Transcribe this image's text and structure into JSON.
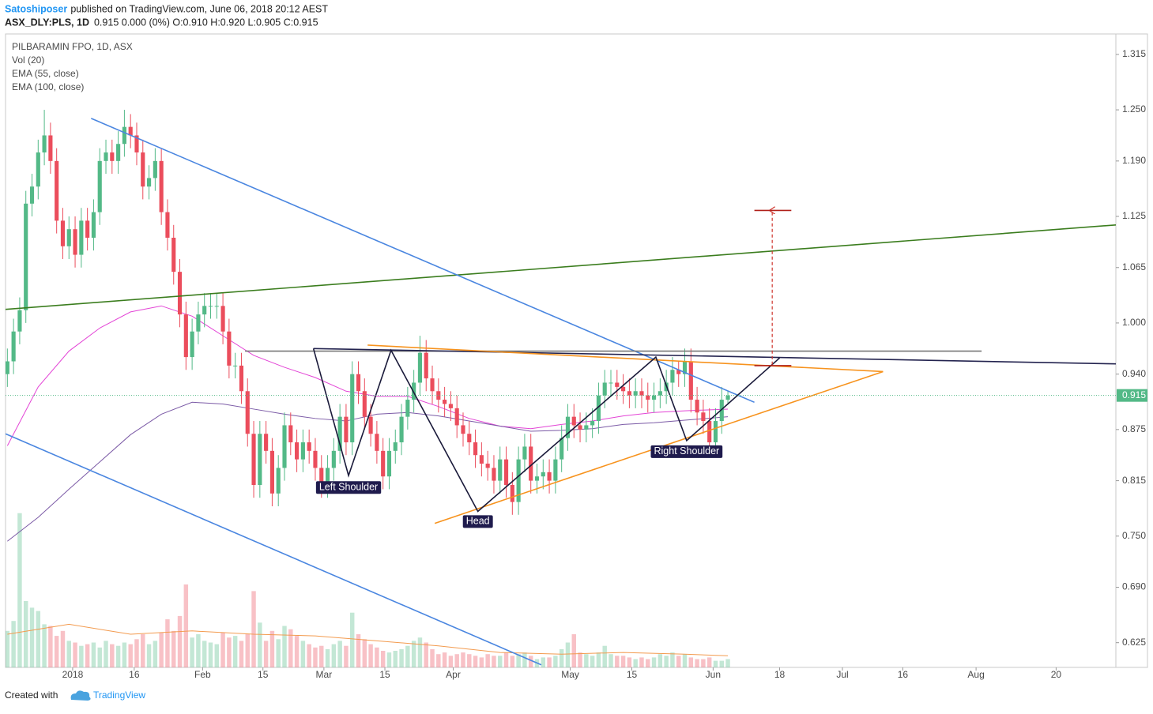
{
  "header": {
    "author": "Satoshiposer",
    "published": "published on TradingView.com, June 06, 2018 20:12 AEST",
    "symbol": "ASX_DLY:PLS, 1D",
    "quote": "0.915 0.000 (0%) O:0.910 H:0.920 L:0.905 C:0.915"
  },
  "chart_data": {
    "type": "candlestick",
    "title": "PILBARAMIN FPO, 1D, ASX",
    "up_color": "#53b987",
    "down_color": "#eb4d5c",
    "open": [
      0.94,
      0.955,
      0.99,
      1.015,
      1.14,
      1.16,
      1.2,
      1.22,
      1.19,
      1.12,
      1.09,
      1.11,
      1.08,
      1.12,
      1.1,
      1.13,
      1.19,
      1.2,
      1.19,
      1.21,
      1.23,
      1.22,
      1.2,
      1.16,
      1.17,
      1.19,
      1.13,
      1.1,
      1.06,
      1.01,
      0.96,
      0.99,
      1.01,
      1.02,
      1.02,
      1.02,
      0.99,
      0.95,
      0.95,
      0.92,
      0.87,
      0.81,
      0.87,
      0.85,
      0.8,
      0.83,
      0.88,
      0.86,
      0.84,
      0.86,
      0.85,
      0.83,
      0.81,
      0.83,
      0.85,
      0.89,
      0.86,
      0.94,
      0.92,
      0.89,
      0.87,
      0.85,
      0.82,
      0.85,
      0.86,
      0.89,
      0.91,
      0.93,
      0.965,
      0.935,
      0.92,
      0.91,
      0.905,
      0.9,
      0.88,
      0.87,
      0.86,
      0.845,
      0.835,
      0.83,
      0.815,
      0.84,
      0.81,
      0.79,
      0.84,
      0.855,
      0.815,
      0.82,
      0.825,
      0.815,
      0.84,
      0.865,
      0.89,
      0.88,
      0.875,
      0.88,
      0.885,
      0.915,
      0.93,
      0.93,
      0.925,
      0.92,
      0.915,
      0.92,
      0.915,
      0.91,
      0.915,
      0.92,
      0.93,
      0.945,
      0.94,
      0.955,
      0.91,
      0.895,
      0.885,
      0.86,
      0.885,
      0.91
    ],
    "high": [
      0.97,
      1.005,
      1.03,
      1.155,
      1.175,
      1.215,
      1.25,
      1.235,
      1.205,
      1.135,
      1.125,
      1.125,
      1.135,
      1.135,
      1.145,
      1.205,
      1.215,
      1.215,
      1.225,
      1.25,
      1.245,
      1.235,
      1.215,
      1.185,
      1.205,
      1.205,
      1.145,
      1.115,
      1.075,
      1.025,
      1.005,
      1.025,
      1.035,
      1.035,
      1.035,
      1.035,
      1.005,
      0.965,
      0.965,
      0.935,
      0.885,
      0.885,
      0.885,
      0.865,
      0.845,
      0.895,
      0.895,
      0.875,
      0.875,
      0.875,
      0.865,
      0.845,
      0.845,
      0.865,
      0.905,
      0.905,
      0.955,
      0.955,
      0.935,
      0.905,
      0.885,
      0.865,
      0.865,
      0.875,
      0.905,
      0.925,
      0.945,
      0.985,
      0.98,
      0.95,
      0.935,
      0.925,
      0.92,
      0.915,
      0.895,
      0.885,
      0.875,
      0.86,
      0.85,
      0.845,
      0.855,
      0.855,
      0.825,
      0.855,
      0.87,
      0.87,
      0.835,
      0.84,
      0.84,
      0.855,
      0.88,
      0.905,
      0.905,
      0.895,
      0.895,
      0.9,
      0.93,
      0.945,
      0.945,
      0.945,
      0.94,
      0.935,
      0.935,
      0.935,
      0.93,
      0.93,
      0.935,
      0.945,
      0.96,
      0.955,
      0.97,
      0.97,
      0.925,
      0.91,
      0.9,
      0.9,
      0.925,
      0.92
    ],
    "low": [
      0.925,
      0.94,
      0.975,
      1.0,
      1.125,
      1.145,
      1.185,
      1.175,
      1.105,
      1.075,
      1.075,
      1.065,
      1.065,
      1.085,
      1.085,
      1.115,
      1.175,
      1.175,
      1.175,
      1.195,
      1.205,
      1.185,
      1.145,
      1.145,
      1.155,
      1.115,
      1.085,
      1.045,
      0.995,
      0.945,
      0.945,
      0.975,
      0.995,
      1.005,
      1.005,
      0.975,
      0.935,
      0.935,
      0.905,
      0.855,
      0.795,
      0.795,
      0.835,
      0.785,
      0.785,
      0.815,
      0.845,
      0.825,
      0.825,
      0.835,
      0.815,
      0.795,
      0.795,
      0.815,
      0.835,
      0.845,
      0.845,
      0.905,
      0.875,
      0.855,
      0.835,
      0.805,
      0.805,
      0.835,
      0.845,
      0.875,
      0.895,
      0.915,
      0.92,
      0.905,
      0.895,
      0.89,
      0.885,
      0.865,
      0.855,
      0.845,
      0.83,
      0.82,
      0.815,
      0.8,
      0.8,
      0.795,
      0.775,
      0.775,
      0.825,
      0.8,
      0.8,
      0.805,
      0.8,
      0.8,
      0.825,
      0.85,
      0.865,
      0.86,
      0.86,
      0.865,
      0.87,
      0.9,
      0.915,
      0.91,
      0.905,
      0.9,
      0.9,
      0.9,
      0.895,
      0.895,
      0.9,
      0.905,
      0.915,
      0.925,
      0.925,
      0.895,
      0.88,
      0.87,
      0.845,
      0.845,
      0.87,
      0.905
    ],
    "close": [
      0.955,
      0.99,
      1.015,
      1.14,
      1.16,
      1.2,
      1.22,
      1.19,
      1.12,
      1.09,
      1.11,
      1.08,
      1.12,
      1.1,
      1.13,
      1.19,
      1.2,
      1.19,
      1.21,
      1.23,
      1.22,
      1.2,
      1.16,
      1.17,
      1.19,
      1.13,
      1.1,
      1.06,
      1.01,
      0.96,
      0.99,
      1.01,
      1.02,
      1.02,
      1.02,
      0.99,
      0.95,
      0.95,
      0.92,
      0.87,
      0.81,
      0.87,
      0.85,
      0.8,
      0.83,
      0.88,
      0.86,
      0.84,
      0.86,
      0.85,
      0.83,
      0.81,
      0.83,
      0.85,
      0.89,
      0.86,
      0.94,
      0.92,
      0.89,
      0.87,
      0.85,
      0.82,
      0.85,
      0.86,
      0.89,
      0.91,
      0.93,
      0.965,
      0.935,
      0.92,
      0.91,
      0.905,
      0.9,
      0.88,
      0.87,
      0.86,
      0.845,
      0.835,
      0.83,
      0.815,
      0.84,
      0.81,
      0.79,
      0.84,
      0.855,
      0.815,
      0.82,
      0.825,
      0.815,
      0.84,
      0.865,
      0.89,
      0.88,
      0.875,
      0.88,
      0.885,
      0.915,
      0.93,
      0.93,
      0.925,
      0.92,
      0.915,
      0.92,
      0.915,
      0.91,
      0.915,
      0.92,
      0.93,
      0.945,
      0.94,
      0.955,
      0.91,
      0.895,
      0.885,
      0.86,
      0.885,
      0.91,
      0.915
    ],
    "volume": {
      "name": "Vol (20)",
      "ylim": [
        0,
        10
      ],
      "values": [
        2.2,
        2.8,
        9.3,
        4.0,
        3.6,
        3.4,
        2.6,
        2.5,
        1.9,
        2.2,
        1.6,
        1.5,
        1.3,
        1.4,
        1.5,
        1.2,
        1.6,
        1.4,
        1.3,
        1.5,
        1.4,
        1.7,
        2.0,
        1.4,
        1.6,
        2.1,
        2.9,
        2.2,
        3.1,
        5.0,
        1.8,
        2.0,
        1.6,
        1.5,
        1.4,
        2.1,
        1.8,
        1.9,
        1.6,
        2.0,
        4.6,
        2.7,
        1.6,
        2.2,
        1.7,
        2.5,
        2.3,
        1.9,
        1.6,
        1.4,
        1.2,
        1.3,
        1.1,
        1.4,
        1.6,
        1.3,
        3.3,
        2.0,
        1.7,
        1.4,
        1.2,
        1.0,
        0.9,
        1.0,
        1.1,
        1.3,
        1.6,
        1.8,
        1.5,
        1.1,
        0.8,
        0.9,
        0.7,
        0.8,
        0.9,
        0.8,
        0.7,
        0.6,
        0.8,
        0.7,
        0.7,
        0.9,
        0.7,
        0.8,
        0.9,
        0.7,
        0.5,
        0.6,
        0.6,
        0.7,
        1.1,
        1.5,
        2.0,
        0.9,
        0.8,
        0.7,
        0.9,
        1.3,
        0.8,
        0.7,
        0.7,
        0.6,
        0.5,
        0.6,
        0.5,
        0.6,
        0.8,
        0.7,
        0.9,
        0.7,
        0.8,
        0.6,
        0.5,
        0.5,
        0.6,
        0.4,
        0.4,
        0.5
      ],
      "ma": {
        "color": "#f39b4f",
        "x": [
          0,
          10,
          20,
          30,
          40,
          50,
          60,
          70,
          80,
          90,
          100,
          110,
          117
        ],
        "values": [
          2.0,
          2.6,
          2.0,
          2.2,
          2.0,
          1.9,
          1.6,
          1.3,
          0.9,
          0.8,
          0.9,
          0.8,
          0.7
        ]
      }
    },
    "series": [
      {
        "name": "EMA (55, close)",
        "color": "#e344d6",
        "x": [
          0,
          5,
          10,
          15,
          20,
          25,
          30,
          35,
          40,
          45,
          50,
          55,
          60,
          65,
          70,
          75,
          80,
          85,
          90,
          95,
          100,
          105,
          110,
          117
        ],
        "values": [
          0.856,
          0.925,
          0.967,
          0.994,
          1.013,
          1.02,
          1.008,
          0.985,
          0.962,
          0.948,
          0.936,
          0.92,
          0.914,
          0.914,
          0.902,
          0.888,
          0.879,
          0.876,
          0.881,
          0.885,
          0.891,
          0.895,
          0.897,
          0.899
        ]
      },
      {
        "name": "EMA (100, close)",
        "color": "#7b5aa6",
        "x": [
          0,
          5,
          10,
          15,
          20,
          25,
          30,
          35,
          40,
          45,
          50,
          55,
          60,
          65,
          70,
          75,
          80,
          85,
          90,
          95,
          100,
          105,
          110,
          117
        ],
        "values": [
          0.744,
          0.772,
          0.805,
          0.837,
          0.869,
          0.893,
          0.907,
          0.905,
          0.899,
          0.893,
          0.888,
          0.885,
          0.893,
          0.895,
          0.891,
          0.885,
          0.879,
          0.873,
          0.874,
          0.876,
          0.881,
          0.883,
          0.886,
          0.89
        ]
      }
    ],
    "drawings": [
      {
        "color": "#3b7d1e",
        "x": [
          -0.3,
          180
        ],
        "y": [
          1.016,
          1.115
        ]
      },
      {
        "color": "#4a86e0",
        "x": [
          13.6,
          121.3
        ],
        "y": [
          1.24,
          0.907
        ]
      },
      {
        "color": "#4a86e0",
        "x": [
          -0.3,
          86.7
        ],
        "y": [
          0.87,
          0.599
        ]
      },
      {
        "color": "#777777",
        "x": [
          38.6,
          158.2
        ],
        "y": [
          0.967,
          0.967
        ]
      },
      {
        "color": "#23234f",
        "x": [
          49.7,
          180
        ],
        "y": [
          0.97,
          0.952
        ]
      },
      {
        "color": "#f7931e",
        "x": [
          58.5,
          142.2
        ],
        "y": [
          0.974,
          0.943
        ]
      },
      {
        "color": "#f7931e",
        "x": [
          69.4,
          142.2
        ],
        "y": [
          0.765,
          0.943
        ]
      },
      {
        "color": "#1a1a3a",
        "x": [
          49.7,
          55.4,
          62.3,
          76.4,
          105.3,
          110.3,
          125.4
        ],
        "y": [
          0.97,
          0.821,
          0.968,
          0.779,
          0.96,
          0.862,
          0.959
        ]
      },
      {
        "color": "#d0342c",
        "dashed": true,
        "x": [
          124.2,
          124.2
        ],
        "y": [
          0.951,
          1.132
        ]
      },
      {
        "color": "#b0201a",
        "x": [
          121.3,
          127.3
        ],
        "y": [
          1.132,
          1.132
        ]
      },
      {
        "color": "#b0201a",
        "x": [
          121.3,
          127.3
        ],
        "y": [
          0.95,
          0.95
        ]
      }
    ],
    "annotations": [
      {
        "text": "Left Shoulder",
        "x": 55.4,
        "y": 0.807
      },
      {
        "text": "Head",
        "x": 76.4,
        "y": 0.767
      },
      {
        "text": "Right Shoulder",
        "x": 110.3,
        "y": 0.849
      }
    ],
    "xlim": [
      -0.3,
      180
    ],
    "xticks": [
      {
        "value": 10.6,
        "label": "2018"
      },
      {
        "value": 20.6,
        "label": "16"
      },
      {
        "value": 31.7,
        "label": "Feb"
      },
      {
        "value": 41.5,
        "label": "15"
      },
      {
        "value": 51.4,
        "label": "Mar"
      },
      {
        "value": 61.3,
        "label": "15"
      },
      {
        "value": 72.4,
        "label": "Apr"
      },
      {
        "value": 91.4,
        "label": "May"
      },
      {
        "value": 101.4,
        "label": "15"
      },
      {
        "value": 114.6,
        "label": "Jun"
      },
      {
        "value": 125.4,
        "label": "18"
      },
      {
        "value": 135.6,
        "label": "Jul"
      },
      {
        "value": 145.4,
        "label": "16"
      },
      {
        "value": 157.3,
        "label": "Aug"
      },
      {
        "value": 170.3,
        "label": "20"
      }
    ],
    "ylim": [
      0.596,
      1.339
    ],
    "yticks": [
      1.315,
      {
        "value": 1.25,
        "label": "1.250"
      },
      {
        "value": 1.19,
        "label": "1.190"
      },
      1.125,
      1.065,
      {
        "value": 1,
        "label": "1.000"
      },
      {
        "value": 0.94,
        "label": "0.940"
      },
      0.875,
      0.815,
      {
        "value": 0.75,
        "label": "0.750"
      },
      {
        "value": 0.69,
        "label": "0.690"
      },
      0.625
    ],
    "grid": false
  },
  "footer": {
    "created": "Created with",
    "brand": "TradingView"
  }
}
